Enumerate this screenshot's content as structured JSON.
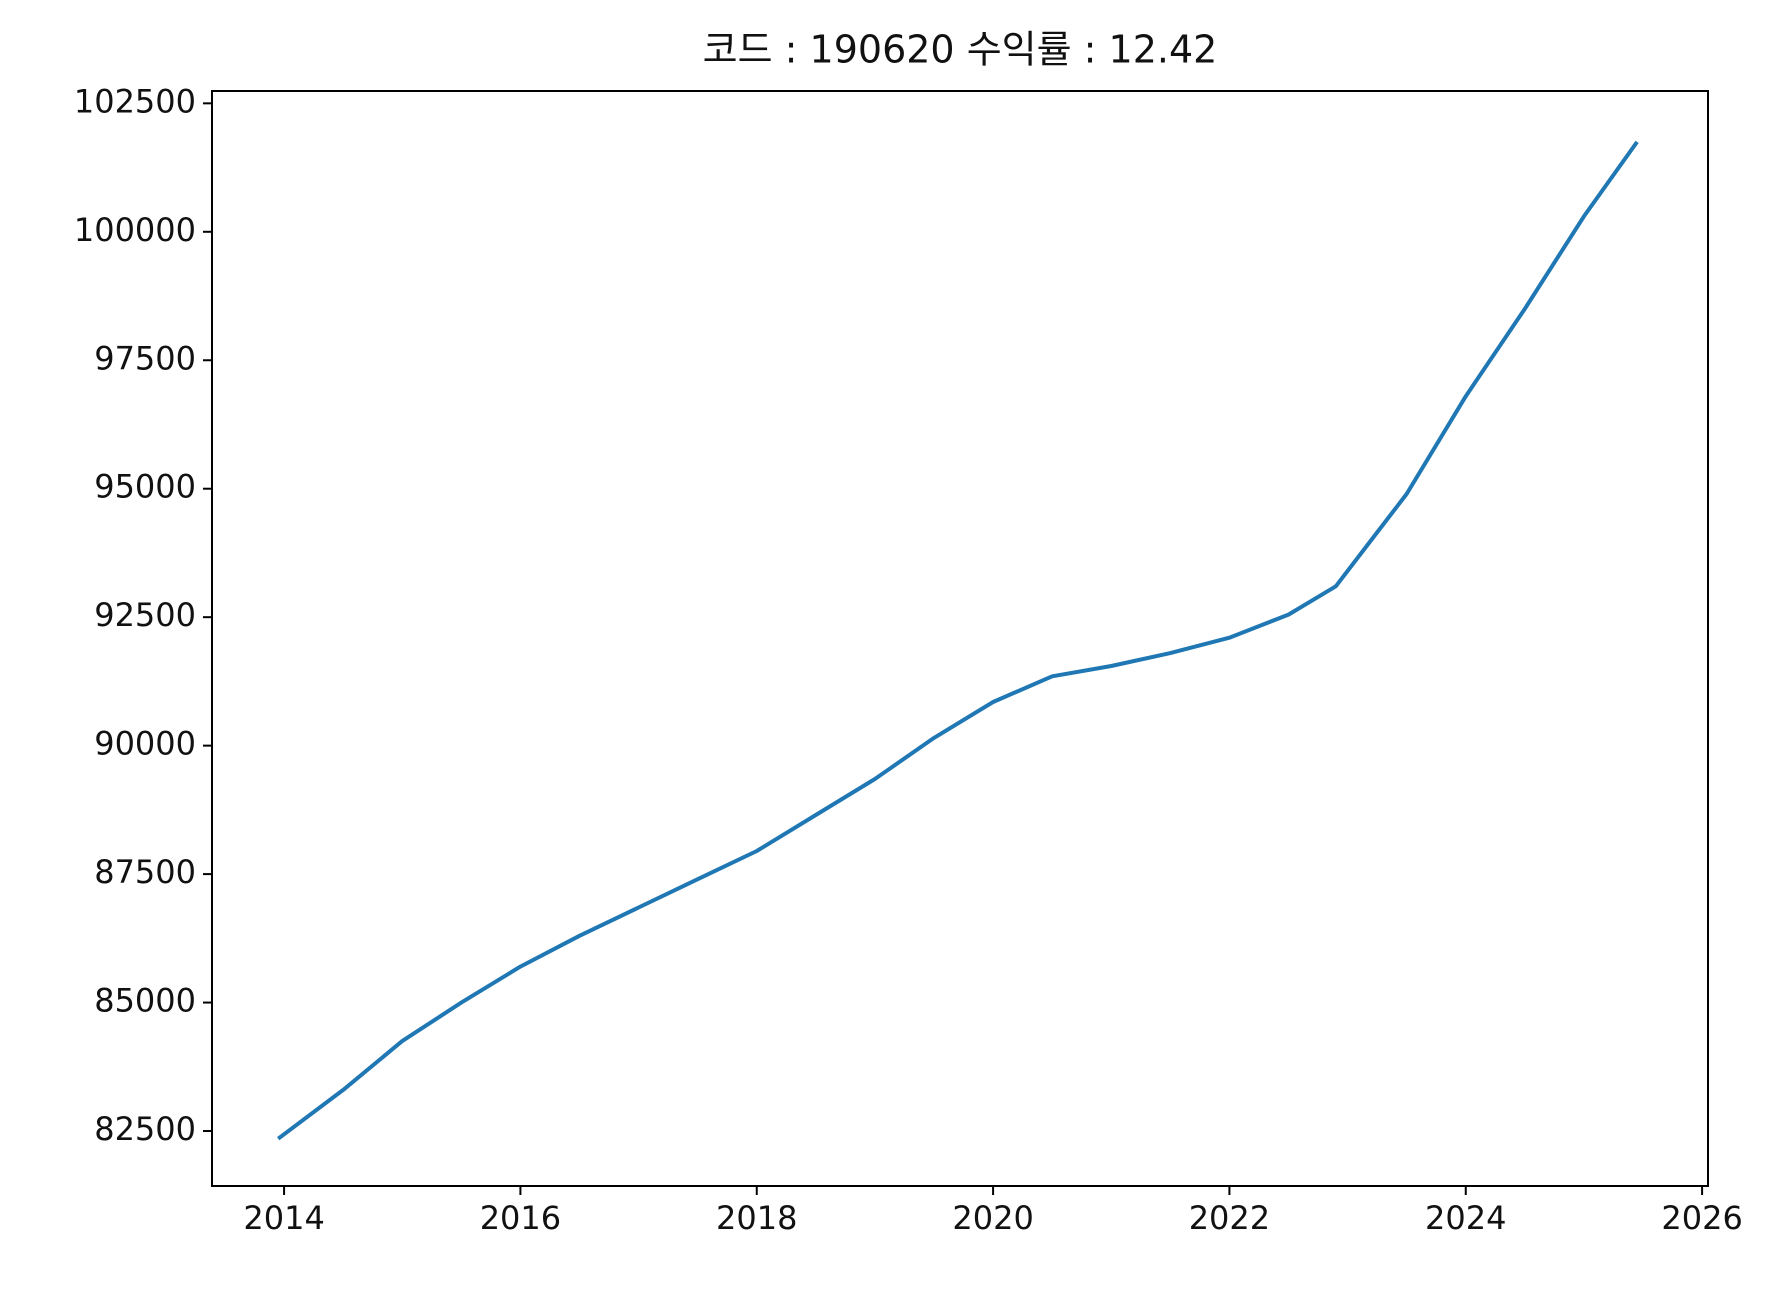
{
  "chart_data": {
    "type": "line",
    "title": "코드 : 190620 수익률 : 12.42",
    "x": [
      2013.95,
      2014.5,
      2015.0,
      2015.5,
      2016.0,
      2016.5,
      2017.0,
      2017.5,
      2018.0,
      2018.5,
      2019.0,
      2019.5,
      2020.0,
      2020.5,
      2021.0,
      2021.5,
      2022.0,
      2022.5,
      2022.9,
      2023.2,
      2023.5,
      2024.0,
      2024.5,
      2025.0,
      2025.45
    ],
    "series": [
      {
        "color": "#1f77b4",
        "values": [
          82350,
          83300,
          84250,
          85000,
          85700,
          86300,
          86850,
          87400,
          87950,
          88650,
          89350,
          90150,
          90850,
          91350,
          91550,
          91800,
          92100,
          92550,
          93100,
          94000,
          94900,
          96800,
          98500,
          100300,
          101750
        ]
      }
    ],
    "xlim": [
      2013.39,
      2026.05
    ],
    "xticks": [
      2014,
      2016,
      2018,
      2020,
      2022,
      2024,
      2026
    ],
    "ylim": [
      81430,
      102740
    ],
    "yticks": [
      82500,
      85000,
      87500,
      90000,
      92500,
      95000,
      97500,
      100000,
      102500
    ]
  }
}
